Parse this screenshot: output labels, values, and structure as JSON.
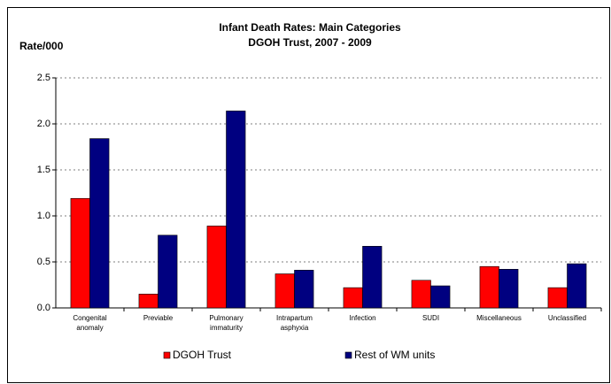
{
  "chart_data": {
    "type": "bar",
    "title": "Infant Death Rates: Main Categories",
    "subtitle": "DGOH Trust, 2007 - 2009",
    "y_label": "Rate/000",
    "categories": [
      "Congenital anomaly",
      "Previable",
      "Pulmonary immaturity",
      "Intrapartum asphyxia",
      "Infection",
      "SUDI",
      "Miscellaneous",
      "Unclassified"
    ],
    "series": [
      {
        "name": "DGOH Trust",
        "color": "#ff0000",
        "values": [
          1.19,
          0.15,
          0.89,
          0.37,
          0.22,
          0.3,
          0.45,
          0.22
        ]
      },
      {
        "name": "Rest of WM units",
        "color": "#000080",
        "values": [
          1.84,
          0.79,
          2.14,
          0.41,
          0.67,
          0.24,
          0.42,
          0.48
        ]
      }
    ],
    "ylim": [
      0,
      2.5
    ],
    "yticks": [
      {
        "value": 0,
        "label": "0.0"
      },
      {
        "value": 0.5,
        "label": "0.5"
      },
      {
        "value": 1,
        "label": "1.0"
      },
      {
        "value": 1.5,
        "label": "1.5"
      },
      {
        "value": 2,
        "label": "2.0"
      },
      {
        "value": 2.5,
        "label": "2.5"
      }
    ],
    "grid": true
  }
}
